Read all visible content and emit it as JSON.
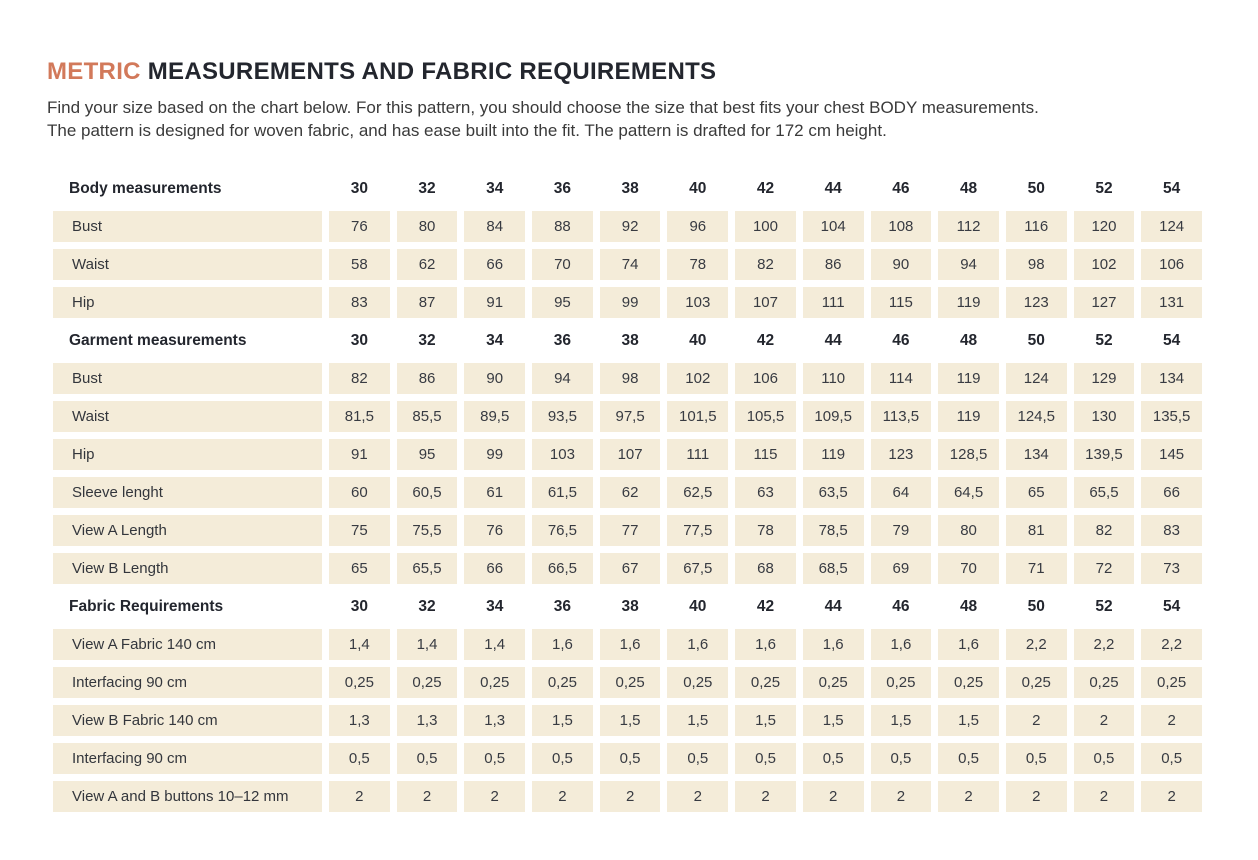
{
  "header": {
    "title_highlight": "METRIC",
    "title_rest": " MEASUREMENTS AND FABRIC REQUIREMENTS",
    "intro_line1": "Find your size based on the chart below. For this pattern, you should choose the size that best fits your chest BODY measurements.",
    "intro_line2": "The pattern is designed for woven fabric, and has ease built into the fit. The pattern is drafted for 172 cm height."
  },
  "colors": {
    "accent": "#d2795a",
    "cell_background": "#f4ecd9",
    "heading_text": "#23262e",
    "body_text": "#3a3a3a"
  },
  "sizes": [
    "30",
    "32",
    "34",
    "36",
    "38",
    "40",
    "42",
    "44",
    "46",
    "48",
    "50",
    "52",
    "54"
  ],
  "table": {
    "sections": [
      {
        "header": "Body measurements",
        "rows": [
          {
            "label": "Bust",
            "values": [
              "76",
              "80",
              "84",
              "88",
              "92",
              "96",
              "100",
              "104",
              "108",
              "112",
              "116",
              "120",
              "124"
            ]
          },
          {
            "label": "Waist",
            "values": [
              "58",
              "62",
              "66",
              "70",
              "74",
              "78",
              "82",
              "86",
              "90",
              "94",
              "98",
              "102",
              "106"
            ]
          },
          {
            "label": "Hip",
            "values": [
              "83",
              "87",
              "91",
              "95",
              "99",
              "103",
              "107",
              "111",
              "115",
              "119",
              "123",
              "127",
              "131"
            ]
          }
        ]
      },
      {
        "header": "Garment measurements",
        "rows": [
          {
            "label": "Bust",
            "values": [
              "82",
              "86",
              "90",
              "94",
              "98",
              "102",
              "106",
              "110",
              "114",
              "119",
              "124",
              "129",
              "134"
            ]
          },
          {
            "label": "Waist",
            "values": [
              "81,5",
              "85,5",
              "89,5",
              "93,5",
              "97,5",
              "101,5",
              "105,5",
              "109,5",
              "113,5",
              "119",
              "124,5",
              "130",
              "135,5"
            ]
          },
          {
            "label": "Hip",
            "values": [
              "91",
              "95",
              "99",
              "103",
              "107",
              "111",
              "115",
              "119",
              "123",
              "128,5",
              "134",
              "139,5",
              "145"
            ]
          },
          {
            "label": "Sleeve lenght",
            "values": [
              "60",
              "60,5",
              "61",
              "61,5",
              "62",
              "62,5",
              "63",
              "63,5",
              "64",
              "64,5",
              "65",
              "65,5",
              "66"
            ]
          },
          {
            "label": "View A Length",
            "values": [
              "75",
              "75,5",
              "76",
              "76,5",
              "77",
              "77,5",
              "78",
              "78,5",
              "79",
              "80",
              "81",
              "82",
              "83"
            ]
          },
          {
            "label": "View B Length",
            "values": [
              "65",
              "65,5",
              "66",
              "66,5",
              "67",
              "67,5",
              "68",
              "68,5",
              "69",
              "70",
              "71",
              "72",
              "73"
            ]
          }
        ]
      },
      {
        "header": "Fabric Requirements",
        "rows": [
          {
            "label": "View A Fabric 140 cm",
            "values": [
              "1,4",
              "1,4",
              "1,4",
              "1,6",
              "1,6",
              "1,6",
              "1,6",
              "1,6",
              "1,6",
              "1,6",
              "2,2",
              "2,2",
              "2,2"
            ]
          },
          {
            "label": "Interfacing 90 cm",
            "values": [
              "0,25",
              "0,25",
              "0,25",
              "0,25",
              "0,25",
              "0,25",
              "0,25",
              "0,25",
              "0,25",
              "0,25",
              "0,25",
              "0,25",
              "0,25"
            ]
          },
          {
            "label": "View B Fabric 140 cm",
            "values": [
              "1,3",
              "1,3",
              "1,3",
              "1,5",
              "1,5",
              "1,5",
              "1,5",
              "1,5",
              "1,5",
              "1,5",
              "2",
              "2",
              "2"
            ]
          },
          {
            "label": "Interfacing 90 cm",
            "values": [
              "0,5",
              "0,5",
              "0,5",
              "0,5",
              "0,5",
              "0,5",
              "0,5",
              "0,5",
              "0,5",
              "0,5",
              "0,5",
              "0,5",
              "0,5"
            ]
          },
          {
            "label": "View A and B buttons 10–12 mm",
            "values": [
              "2",
              "2",
              "2",
              "2",
              "2",
              "2",
              "2",
              "2",
              "2",
              "2",
              "2",
              "2",
              "2"
            ]
          }
        ]
      }
    ]
  }
}
